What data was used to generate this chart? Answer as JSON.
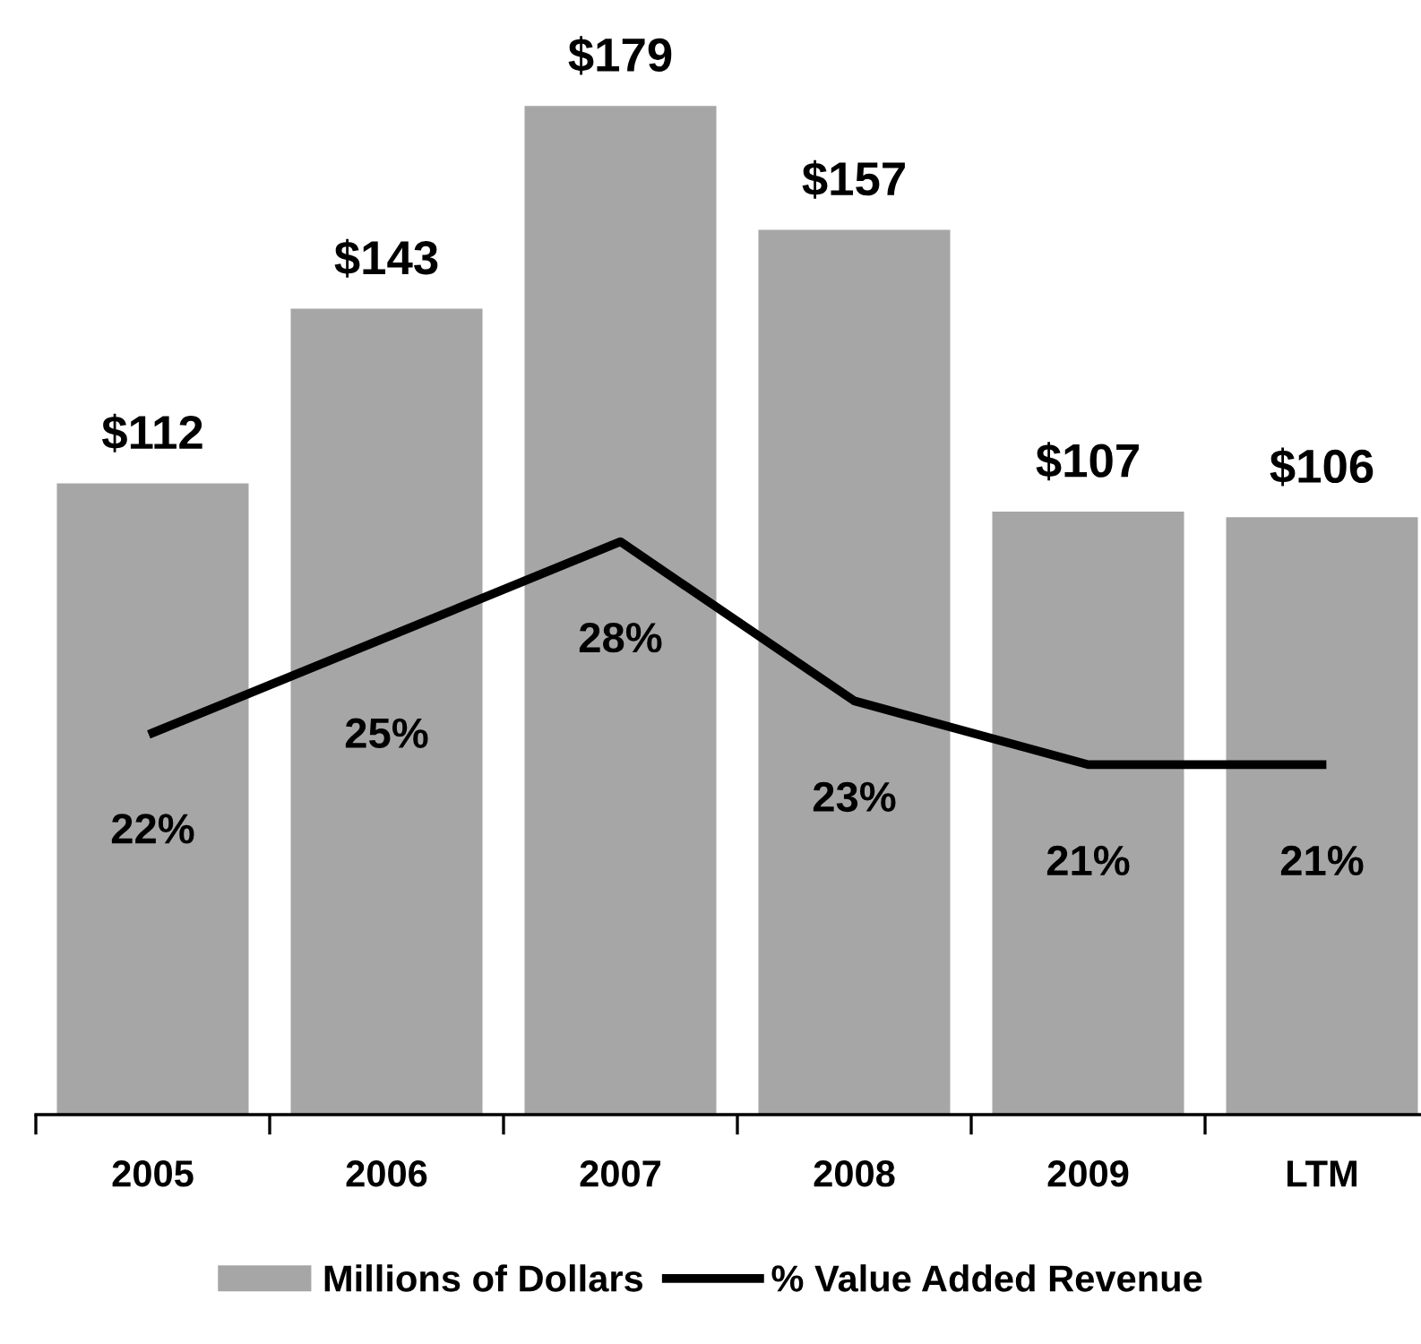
{
  "chart_data": {
    "type": "bar",
    "categories": [
      "2005",
      "2006",
      "2007",
      "2008",
      "2009",
      "LTM"
    ],
    "series": [
      {
        "name": "Millions of Dollars",
        "color": "#a6a6a6",
        "values": [
          112,
          143,
          179,
          157,
          107,
          106
        ],
        "value_labels": [
          "$112",
          "$143",
          "$179",
          "$157",
          "$107",
          "$106"
        ]
      },
      {
        "name": "% Value Added Revenue",
        "type": "line",
        "axis": "y2",
        "color": "#000000",
        "values": [
          22,
          25,
          28,
          23,
          21,
          21
        ],
        "value_labels": [
          "22%",
          "25%",
          "28%",
          "23%",
          "21%",
          "21%"
        ]
      }
    ],
    "tick_labels": "x",
    "grid": false,
    "legend": "bottom",
    "marker": "none",
    "line_style": "solid"
  }
}
